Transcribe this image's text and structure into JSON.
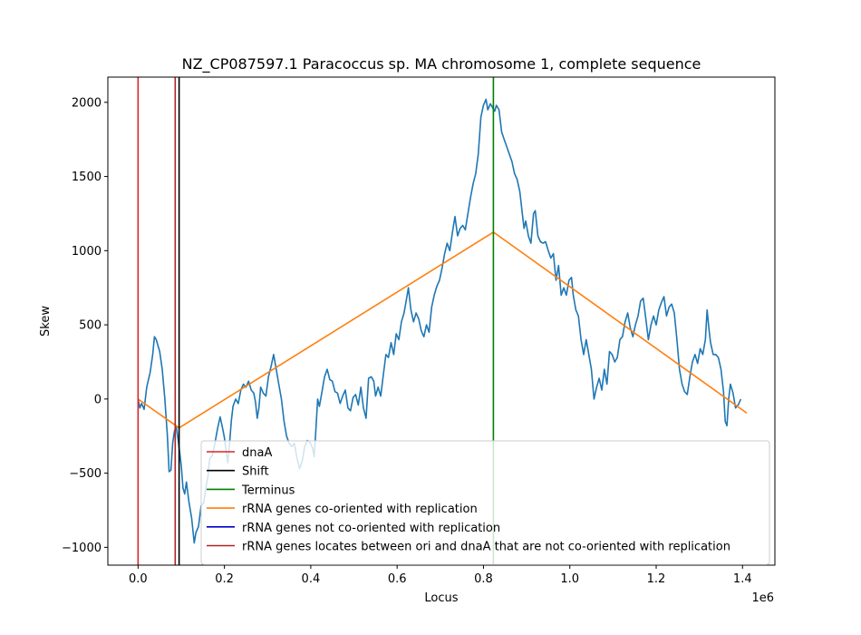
{
  "chart_data": {
    "type": "line",
    "title": "NZ_CP087597.1 Paracoccus sp. MA chromosome 1, complete sequence",
    "xlabel": "Locus",
    "ylabel": "Skew",
    "x_offset_label": "1e6",
    "xlim": [
      -0.07,
      1.475
    ],
    "ylim": [
      -1120,
      2170
    ],
    "x_ticks": [
      0.0,
      0.2,
      0.4,
      0.6,
      0.8,
      1.0,
      1.2,
      1.4
    ],
    "x_tick_labels": [
      "0.0",
      "0.2",
      "0.4",
      "0.6",
      "0.8",
      "1.0",
      "1.2",
      "1.4"
    ],
    "y_ticks": [
      -1000,
      -500,
      0,
      500,
      1000,
      1500,
      2000
    ],
    "y_tick_labels": [
      "−1000",
      "−500",
      "0",
      "500",
      "1000",
      "1500",
      "2000"
    ],
    "grid": false,
    "legend_position": "lower-right",
    "series": [
      {
        "name": "skew",
        "color": "#1f77b4",
        "points": [
          [
            0.0,
            0
          ],
          [
            0.004,
            -60
          ],
          [
            0.008,
            -30
          ],
          [
            0.014,
            -70
          ],
          [
            0.02,
            80
          ],
          [
            0.028,
            180
          ],
          [
            0.034,
            300
          ],
          [
            0.038,
            420
          ],
          [
            0.042,
            400
          ],
          [
            0.05,
            320
          ],
          [
            0.056,
            200
          ],
          [
            0.062,
            0
          ],
          [
            0.068,
            -250
          ],
          [
            0.072,
            -490
          ],
          [
            0.076,
            -480
          ],
          [
            0.08,
            -300
          ],
          [
            0.084,
            -220
          ],
          [
            0.088,
            -180
          ],
          [
            0.092,
            -260
          ],
          [
            0.096,
            -350
          ],
          [
            0.1,
            -450
          ],
          [
            0.104,
            -600
          ],
          [
            0.108,
            -640
          ],
          [
            0.112,
            -560
          ],
          [
            0.118,
            -700
          ],
          [
            0.124,
            -800
          ],
          [
            0.13,
            -970
          ],
          [
            0.134,
            -900
          ],
          [
            0.14,
            -860
          ],
          [
            0.146,
            -720
          ],
          [
            0.152,
            -700
          ],
          [
            0.158,
            -580
          ],
          [
            0.162,
            -520
          ],
          [
            0.166,
            -400
          ],
          [
            0.172,
            -380
          ],
          [
            0.178,
            -300
          ],
          [
            0.184,
            -200
          ],
          [
            0.19,
            -120
          ],
          [
            0.196,
            -200
          ],
          [
            0.2,
            -260
          ],
          [
            0.204,
            -350
          ],
          [
            0.208,
            -430
          ],
          [
            0.212,
            -300
          ],
          [
            0.216,
            -150
          ],
          [
            0.22,
            -50
          ],
          [
            0.226,
            0
          ],
          [
            0.232,
            -30
          ],
          [
            0.238,
            60
          ],
          [
            0.244,
            100
          ],
          [
            0.25,
            80
          ],
          [
            0.256,
            120
          ],
          [
            0.262,
            60
          ],
          [
            0.268,
            40
          ],
          [
            0.272,
            -20
          ],
          [
            0.276,
            -130
          ],
          [
            0.28,
            -60
          ],
          [
            0.284,
            80
          ],
          [
            0.29,
            40
          ],
          [
            0.296,
            20
          ],
          [
            0.302,
            150
          ],
          [
            0.308,
            220
          ],
          [
            0.314,
            300
          ],
          [
            0.32,
            200
          ],
          [
            0.326,
            100
          ],
          [
            0.332,
            0
          ],
          [
            0.338,
            -150
          ],
          [
            0.344,
            -250
          ],
          [
            0.35,
            -300
          ],
          [
            0.356,
            -320
          ],
          [
            0.362,
            -300
          ],
          [
            0.368,
            -400
          ],
          [
            0.374,
            -470
          ],
          [
            0.38,
            -420
          ],
          [
            0.386,
            -320
          ],
          [
            0.392,
            -280
          ],
          [
            0.398,
            -290
          ],
          [
            0.404,
            -330
          ],
          [
            0.408,
            -390
          ],
          [
            0.412,
            -200
          ],
          [
            0.416,
            0
          ],
          [
            0.42,
            -50
          ],
          [
            0.426,
            50
          ],
          [
            0.432,
            150
          ],
          [
            0.438,
            200
          ],
          [
            0.444,
            130
          ],
          [
            0.45,
            120
          ],
          [
            0.456,
            50
          ],
          [
            0.462,
            40
          ],
          [
            0.468,
            -30
          ],
          [
            0.474,
            20
          ],
          [
            0.48,
            60
          ],
          [
            0.486,
            -60
          ],
          [
            0.492,
            -80
          ],
          [
            0.498,
            10
          ],
          [
            0.504,
            30
          ],
          [
            0.51,
            -40
          ],
          [
            0.516,
            80
          ],
          [
            0.522,
            -60
          ],
          [
            0.528,
            -130
          ],
          [
            0.534,
            140
          ],
          [
            0.54,
            150
          ],
          [
            0.546,
            120
          ],
          [
            0.55,
            20
          ],
          [
            0.556,
            80
          ],
          [
            0.562,
            20
          ],
          [
            0.568,
            160
          ],
          [
            0.574,
            300
          ],
          [
            0.58,
            280
          ],
          [
            0.586,
            380
          ],
          [
            0.592,
            300
          ],
          [
            0.598,
            440
          ],
          [
            0.604,
            400
          ],
          [
            0.61,
            520
          ],
          [
            0.616,
            580
          ],
          [
            0.622,
            680
          ],
          [
            0.626,
            750
          ],
          [
            0.632,
            600
          ],
          [
            0.638,
            520
          ],
          [
            0.644,
            580
          ],
          [
            0.65,
            540
          ],
          [
            0.656,
            460
          ],
          [
            0.662,
            420
          ],
          [
            0.668,
            500
          ],
          [
            0.674,
            450
          ],
          [
            0.68,
            620
          ],
          [
            0.686,
            700
          ],
          [
            0.692,
            760
          ],
          [
            0.698,
            800
          ],
          [
            0.704,
            880
          ],
          [
            0.71,
            980
          ],
          [
            0.716,
            1050
          ],
          [
            0.722,
            1000
          ],
          [
            0.728,
            1120
          ],
          [
            0.734,
            1230
          ],
          [
            0.74,
            1100
          ],
          [
            0.746,
            1150
          ],
          [
            0.752,
            1170
          ],
          [
            0.758,
            1140
          ],
          [
            0.764,
            1250
          ],
          [
            0.77,
            1360
          ],
          [
            0.776,
            1450
          ],
          [
            0.782,
            1520
          ],
          [
            0.788,
            1650
          ],
          [
            0.794,
            1900
          ],
          [
            0.8,
            1980
          ],
          [
            0.806,
            2020
          ],
          [
            0.81,
            1950
          ],
          [
            0.816,
            1990
          ],
          [
            0.822,
            1960
          ],
          [
            0.826,
            1940
          ],
          [
            0.83,
            1980
          ],
          [
            0.836,
            1950
          ],
          [
            0.842,
            1800
          ],
          [
            0.848,
            1750
          ],
          [
            0.854,
            1700
          ],
          [
            0.86,
            1650
          ],
          [
            0.866,
            1600
          ],
          [
            0.872,
            1520
          ],
          [
            0.878,
            1480
          ],
          [
            0.884,
            1400
          ],
          [
            0.89,
            1250
          ],
          [
            0.894,
            1150
          ],
          [
            0.898,
            1200
          ],
          [
            0.904,
            1100
          ],
          [
            0.91,
            1050
          ],
          [
            0.916,
            1250
          ],
          [
            0.92,
            1270
          ],
          [
            0.926,
            1100
          ],
          [
            0.932,
            1060
          ],
          [
            0.938,
            1050
          ],
          [
            0.944,
            1060
          ],
          [
            0.95,
            1000
          ],
          [
            0.956,
            950
          ],
          [
            0.962,
            980
          ],
          [
            0.968,
            800
          ],
          [
            0.974,
            900
          ],
          [
            0.98,
            700
          ],
          [
            0.986,
            750
          ],
          [
            0.992,
            700
          ],
          [
            0.998,
            800
          ],
          [
            1.004,
            820
          ],
          [
            1.008,
            700
          ],
          [
            1.014,
            600
          ],
          [
            1.02,
            560
          ],
          [
            1.026,
            400
          ],
          [
            1.032,
            300
          ],
          [
            1.038,
            400
          ],
          [
            1.044,
            300
          ],
          [
            1.05,
            200
          ],
          [
            1.056,
            0
          ],
          [
            1.062,
            80
          ],
          [
            1.068,
            140
          ],
          [
            1.074,
            60
          ],
          [
            1.08,
            200
          ],
          [
            1.086,
            100
          ],
          [
            1.092,
            320
          ],
          [
            1.098,
            300
          ],
          [
            1.104,
            250
          ],
          [
            1.11,
            280
          ],
          [
            1.116,
            400
          ],
          [
            1.122,
            420
          ],
          [
            1.128,
            520
          ],
          [
            1.134,
            580
          ],
          [
            1.14,
            480
          ],
          [
            1.146,
            420
          ],
          [
            1.152,
            500
          ],
          [
            1.158,
            560
          ],
          [
            1.164,
            660
          ],
          [
            1.17,
            680
          ],
          [
            1.176,
            540
          ],
          [
            1.182,
            400
          ],
          [
            1.188,
            500
          ],
          [
            1.194,
            560
          ],
          [
            1.2,
            500
          ],
          [
            1.206,
            600
          ],
          [
            1.212,
            650
          ],
          [
            1.218,
            690
          ],
          [
            1.224,
            560
          ],
          [
            1.23,
            620
          ],
          [
            1.236,
            640
          ],
          [
            1.242,
            580
          ],
          [
            1.248,
            400
          ],
          [
            1.254,
            200
          ],
          [
            1.26,
            100
          ],
          [
            1.266,
            50
          ],
          [
            1.272,
            30
          ],
          [
            1.278,
            150
          ],
          [
            1.284,
            250
          ],
          [
            1.29,
            300
          ],
          [
            1.296,
            240
          ],
          [
            1.302,
            340
          ],
          [
            1.308,
            300
          ],
          [
            1.314,
            400
          ],
          [
            1.318,
            600
          ],
          [
            1.322,
            480
          ],
          [
            1.326,
            380
          ],
          [
            1.332,
            300
          ],
          [
            1.338,
            300
          ],
          [
            1.344,
            280
          ],
          [
            1.35,
            200
          ],
          [
            1.356,
            50
          ],
          [
            1.36,
            -150
          ],
          [
            1.364,
            -180
          ],
          [
            1.368,
            0
          ],
          [
            1.372,
            100
          ],
          [
            1.378,
            40
          ],
          [
            1.384,
            -60
          ],
          [
            1.39,
            -40
          ],
          [
            1.396,
            0
          ]
        ]
      },
      {
        "name": "rRNA genes co-oriented with replication",
        "color": "#ff7f0e",
        "points": [
          [
            0.0,
            0
          ],
          [
            0.095,
            -195
          ],
          [
            0.823,
            1125
          ],
          [
            1.41,
            -95
          ]
        ]
      }
    ],
    "vlines": [
      {
        "name": "dnaA",
        "x": 0.0,
        "color": "#d62728"
      },
      {
        "name": "rRNA genes locates between ori and dnaA that are not co-oriented with replication",
        "x": 0.086,
        "color": "#b22222"
      },
      {
        "name": "Shift",
        "x": 0.095,
        "color": "#000000"
      },
      {
        "name": "Terminus",
        "x": 0.823,
        "color": "#008000"
      }
    ],
    "legend": [
      {
        "label": "dnaA",
        "color": "#d62728"
      },
      {
        "label": "Shift",
        "color": "#000000"
      },
      {
        "label": "Terminus",
        "color": "#008000"
      },
      {
        "label": "rRNA genes co-oriented with replication",
        "color": "#ff7f0e"
      },
      {
        "label": "rRNA genes not co-oriented with replication",
        "color": "#0000cd"
      },
      {
        "label": "rRNA genes locates between ori and dnaA that are not co-oriented with replication",
        "color": "#b22222"
      }
    ]
  }
}
